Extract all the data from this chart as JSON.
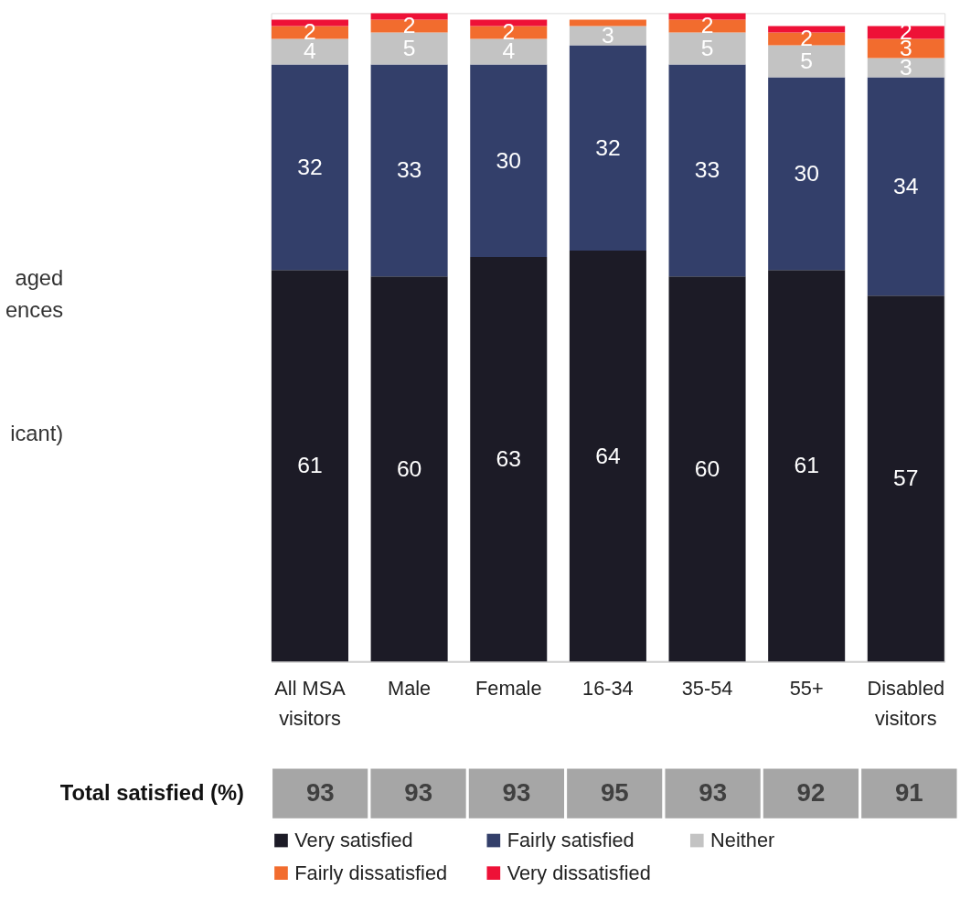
{
  "chart_data": {
    "type": "bar",
    "stacked": true,
    "legend": "bottom",
    "categories": [
      "All MSA\nvisitors",
      "Male",
      "Female",
      "16-34",
      "35-54",
      "55+",
      "Disabled\nvisitors"
    ],
    "series": [
      {
        "name": "Very satisfied",
        "color": "#1c1b26",
        "values": [
          61,
          60,
          63,
          64,
          60,
          61,
          57
        ],
        "value_labels": [
          "61",
          "60",
          "63",
          "64",
          "60",
          "61",
          "57"
        ]
      },
      {
        "name": "Fairly satisfied",
        "color": "#333f6a",
        "values": [
          32,
          33,
          30,
          32,
          33,
          30,
          34
        ],
        "value_labels": [
          "32",
          "33",
          "30",
          "32",
          "33",
          "30",
          "34"
        ]
      },
      {
        "name": "Neither",
        "color": "#c3c3c3",
        "values": [
          4,
          5,
          4,
          3,
          5,
          5,
          3
        ],
        "value_labels": [
          "4",
          "5",
          "4",
          "3",
          "5",
          "5",
          "3"
        ]
      },
      {
        "name": "Fairly dissatisfied",
        "color": "#f26c2e",
        "values": [
          2,
          2,
          2,
          1,
          2,
          2,
          3
        ],
        "value_labels": [
          "2",
          "2",
          "2",
          null,
          "2",
          "2",
          "3"
        ]
      },
      {
        "name": "Very dissatisfied",
        "color": "#ee1137",
        "values": [
          1,
          1,
          1,
          0,
          1,
          1,
          2
        ],
        "value_labels": [
          null,
          null,
          null,
          null,
          null,
          null,
          "2"
        ]
      }
    ],
    "annotations": [
      "aged",
      "ences",
      "icant)",
      "Total satisfied (%)",
      "93",
      "93",
      "93",
      "95",
      "93",
      "92",
      "91"
    ]
  }
}
